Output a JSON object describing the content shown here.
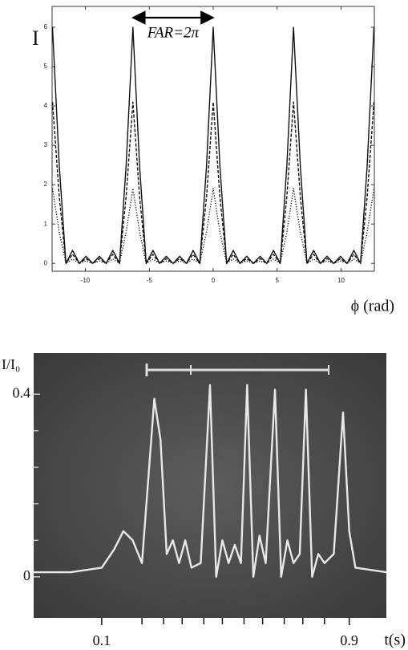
{
  "chart_data": [
    {
      "type": "line",
      "y_label": "I",
      "x_label": "ϕ (rad)",
      "annotation": {
        "text": "FAR=2π",
        "from": -6.28,
        "to": 0
      },
      "x": [
        -12.57,
        -12.04,
        -11.52,
        -11.0,
        -10.47,
        -9.95,
        -9.42,
        -8.9,
        -8.38,
        -7.85,
        -7.33,
        -6.81,
        -6.28,
        -5.76,
        -5.24,
        -4.71,
        -4.19,
        -3.67,
        -3.14,
        -2.62,
        -2.09,
        -1.57,
        -1.05,
        -0.52,
        0,
        0.52,
        1.05,
        1.57,
        2.09,
        2.62,
        3.14,
        3.67,
        4.19,
        4.71,
        5.24,
        5.76,
        6.28,
        6.81,
        7.33,
        7.85,
        8.38,
        8.9,
        9.42,
        9.95,
        10.47,
        11.0,
        11.52,
        12.04,
        12.57
      ],
      "series": [
        {
          "color": "#111111",
          "style": "solid",
          "values": [
            6,
            2.49,
            0,
            0.33,
            0,
            0.18,
            0,
            0.18,
            0,
            0.33,
            0,
            2.49,
            6,
            2.49,
            0,
            0.33,
            0,
            0.18,
            0,
            0.18,
            0,
            0.33,
            0,
            2.49,
            6,
            2.49,
            0,
            0.33,
            0,
            0.18,
            0,
            0.18,
            0,
            0.33,
            0,
            2.49,
            6,
            2.49,
            0,
            0.33,
            0,
            0.18,
            0,
            0.18,
            0,
            0.33,
            0,
            2.49,
            6
          ]
        },
        {
          "color": "#111111",
          "style": "dashed",
          "values": [
            4.1,
            1.7,
            0,
            0.23,
            0,
            0.12,
            0,
            0.12,
            0,
            0.23,
            0,
            1.7,
            4.1,
            1.7,
            0,
            0.23,
            0,
            0.12,
            0,
            0.12,
            0,
            0.23,
            0,
            1.7,
            4.1,
            1.7,
            0,
            0.23,
            0,
            0.12,
            0,
            0.12,
            0,
            0.23,
            0,
            1.7,
            4.1,
            1.7,
            0,
            0.23,
            0,
            0.12,
            0,
            0.12,
            0,
            0.23,
            0,
            1.7,
            4.1
          ]
        },
        {
          "color": "#111111",
          "style": "dotted",
          "values": [
            1.9,
            0.8,
            0,
            0.11,
            0,
            0.06,
            0,
            0.06,
            0,
            0.11,
            0,
            0.8,
            1.9,
            0.8,
            0,
            0.11,
            0,
            0.06,
            0,
            0.06,
            0,
            0.11,
            0,
            0.8,
            1.9,
            0.8,
            0,
            0.11,
            0,
            0.06,
            0,
            0.06,
            0,
            0.11,
            0,
            0.8,
            1.9,
            0.8,
            0,
            0.11,
            0,
            0.06,
            0,
            0.06,
            0,
            0.11,
            0,
            0.8,
            1.9
          ]
        }
      ],
      "xlim": [
        -12.6,
        12.6
      ],
      "xticks": [
        -10,
        -5,
        0,
        5,
        10
      ],
      "ylim": [
        -0.2,
        6.53
      ],
      "yticks": [
        0,
        1,
        2,
        3,
        4,
        5,
        6
      ],
      "grid": false
    },
    {
      "type": "line",
      "y_label": "I/I₀",
      "x_label": "t(s)",
      "background": "#4e4e4e",
      "x": [
        -0.12,
        0.0,
        0.1,
        0.14,
        0.17,
        0.2,
        0.23,
        0.26,
        0.27,
        0.29,
        0.31,
        0.33,
        0.35,
        0.37,
        0.39,
        0.42,
        0.45,
        0.47,
        0.49,
        0.51,
        0.53,
        0.55,
        0.57,
        0.59,
        0.61,
        0.63,
        0.66,
        0.68,
        0.7,
        0.72,
        0.74,
        0.76,
        0.78,
        0.8,
        0.82,
        0.85,
        0.88,
        0.9,
        0.92,
        1.02
      ],
      "series": [
        {
          "color": "#e8e8e8",
          "style": "solid",
          "values": [
            0.01,
            0.01,
            0.02,
            0.06,
            0.1,
            0.08,
            0.03,
            0.3,
            0.39,
            0.3,
            0.05,
            0.08,
            0.03,
            0.08,
            0.02,
            0.03,
            0.42,
            0.0,
            0.08,
            0.03,
            0.07,
            0.03,
            0.42,
            0.0,
            0.09,
            0.03,
            0.41,
            0.0,
            0.08,
            0.03,
            0.05,
            0.41,
            0.0,
            0.05,
            0.03,
            0.05,
            0.36,
            0.1,
            0.02,
            0.01
          ]
        }
      ],
      "xlim": [
        -0.12,
        1.02
      ],
      "xticks": [
        0.1,
        0.9
      ],
      "xminor_ticks": [
        0.23,
        0.3,
        0.36,
        0.43,
        0.49,
        0.56,
        0.62,
        0.69,
        0.75,
        0.82
      ],
      "ylim": [
        -0.09,
        0.49
      ],
      "yticks": [
        0,
        0.4
      ],
      "yminor_ticks": [
        0.08,
        0.16,
        0.24,
        0.32
      ],
      "grid": false
    }
  ]
}
